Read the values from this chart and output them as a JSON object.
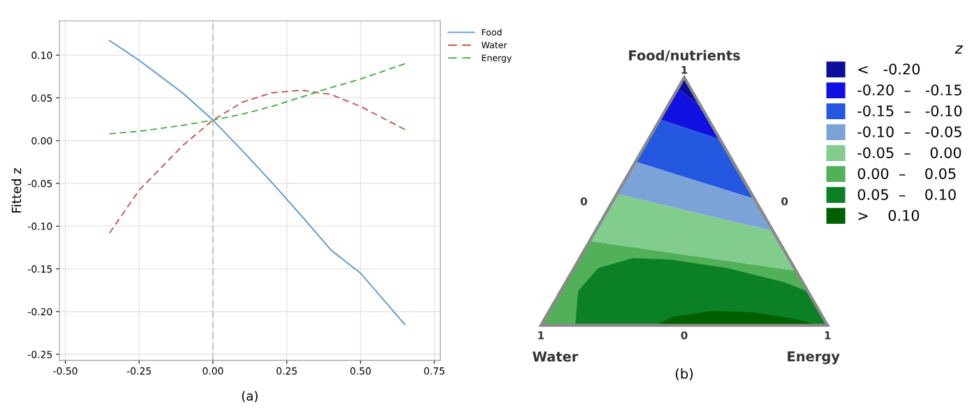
{
  "chart_data": [
    {
      "type": "line",
      "ylabel": "Fitted z",
      "x": [
        -0.35,
        -0.25,
        -0.1,
        0,
        0.1,
        0.2,
        0.3,
        0.4,
        0.5,
        0.65
      ],
      "series": [
        {
          "name": "Food",
          "color": "#5b93d3",
          "line_style": "solid",
          "values": [
            0.117,
            0.094,
            0.055,
            0.024,
            -0.012,
            -0.049,
            -0.088,
            -0.128,
            -0.155,
            -0.215
          ]
        },
        {
          "name": "Water",
          "color": "#c0504d",
          "line_style": "dashed",
          "values": [
            -0.108,
            -0.058,
            -0.005,
            0.024,
            0.045,
            0.056,
            0.059,
            0.054,
            0.04,
            0.013
          ]
        },
        {
          "name": "Energy",
          "color": "#3cae3c",
          "line_style": "dashed",
          "values": [
            0.008,
            0.011,
            0.018,
            0.024,
            0.031,
            0.04,
            0.051,
            0.062,
            0.072,
            0.09
          ]
        }
      ],
      "xlim": [
        -0.52,
        0.77
      ],
      "ylim": [
        -0.257,
        0.14
      ],
      "xticks": [
        {
          "value": -0.5,
          "label": "-0.50"
        },
        {
          "value": -0.25,
          "label": "-0.25"
        },
        {
          "value": 0,
          "label": "0.00"
        },
        {
          "value": 0.25,
          "label": "0.25"
        },
        {
          "value": 0.5,
          "label": "0.50"
        },
        {
          "value": 0.75,
          "label": "0.75"
        }
      ],
      "yticks": [
        {
          "value": -0.25,
          "label": "-0.25"
        },
        {
          "value": -0.2,
          "label": "-0.20"
        },
        {
          "value": -0.15,
          "label": "-0.15"
        },
        {
          "value": -0.1,
          "label": "-0.10"
        },
        {
          "value": -0.05,
          "label": "-0.05"
        },
        {
          "value": 0,
          "label": "0.00"
        },
        {
          "value": 0.05,
          "label": "0.05"
        },
        {
          "value": 0.1,
          "label": "0.10"
        }
      ],
      "ref_lines": [
        {
          "axis": "x",
          "value": 0,
          "color": "#b0b0b0",
          "line_style": "dashed"
        }
      ],
      "grid": true,
      "legend": "right",
      "annotations": [
        "(a)"
      ]
    },
    {
      "type": "other",
      "title": "Food/nutrients",
      "legend_title": "z",
      "categories": [
        "<   -0.20",
        "-0.20  –   -0.15",
        "-0.15  –   -0.10",
        "-0.10  –   -0.05",
        "-0.05  –    0.00",
        "0.00  –    0.05",
        "0.05  –    0.10",
        ">    0.10"
      ],
      "colors": [
        "#0d0d9c",
        "#1010e0",
        "#2458e0",
        "#7ba3d8",
        "#82cc8e",
        "#52b058",
        "#0b8024",
        "#006000"
      ],
      "annotations": [
        "1",
        "0",
        "0",
        "1",
        "0",
        "1",
        "Water",
        "Energy",
        "(b)"
      ]
    }
  ]
}
